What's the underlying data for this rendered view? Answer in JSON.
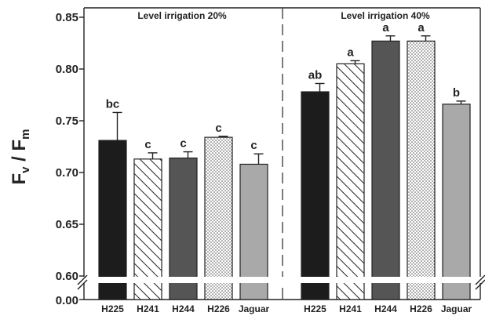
{
  "chart_data": {
    "type": "bar",
    "ylabel": {
      "main1": "F",
      "sub1": "v",
      "mid": " / F",
      "sub2": "m"
    },
    "ylim": [
      0.6,
      0.85
    ],
    "y_break": {
      "lower_tick": "0.00",
      "upper_start": 0.6
    },
    "yticks": [
      0.6,
      0.65,
      0.7,
      0.75,
      0.8,
      0.85
    ],
    "ytick_labels": [
      "0.60",
      "0.65",
      "0.70",
      "0.75",
      "0.80",
      "0.85"
    ],
    "grid": false,
    "panels": [
      {
        "title": "Level irrigation 20%",
        "categories": [
          "H225",
          "H241",
          "H244",
          "H226",
          "Jaguar"
        ],
        "values": [
          0.731,
          0.713,
          0.714,
          0.734,
          0.708
        ],
        "errors": [
          0.027,
          0.006,
          0.006,
          0.001,
          0.01
        ],
        "labels": [
          "bc",
          "c",
          "c",
          "c",
          "c"
        ]
      },
      {
        "title": "Level irrigation 40%",
        "categories": [
          "H225",
          "H241",
          "H244",
          "H226",
          "Jaguar"
        ],
        "values": [
          0.778,
          0.805,
          0.827,
          0.827,
          0.766
        ],
        "errors": [
          0.008,
          0.003,
          0.005,
          0.005,
          0.003
        ],
        "labels": [
          "ab",
          "a",
          "a",
          "a",
          "b"
        ]
      }
    ],
    "series_styles": [
      {
        "fill": "#1c1c1c",
        "pattern": "solid"
      },
      {
        "fill": "#ffffff",
        "pattern": "diagonal-hatch"
      },
      {
        "fill": "#555555",
        "pattern": "solid"
      },
      {
        "fill": "#ffffff",
        "pattern": "dots"
      },
      {
        "fill": "#a9a9a9",
        "pattern": "solid"
      }
    ]
  }
}
